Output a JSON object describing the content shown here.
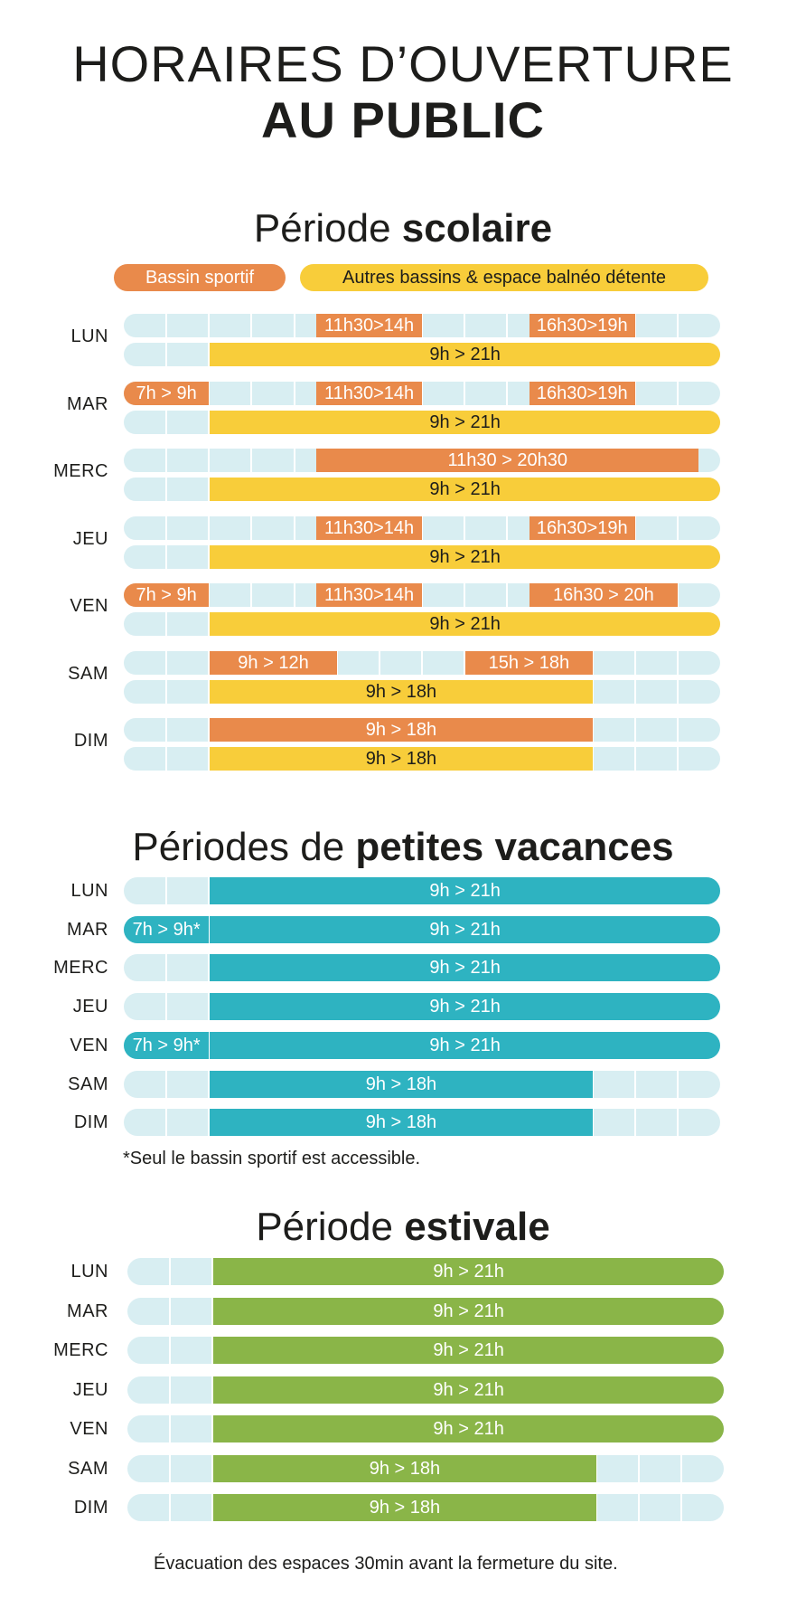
{
  "title": {
    "line1": "HORAIRES D’OUVERTURE",
    "line2": "AU PUBLIC"
  },
  "colors": {
    "track": "#d8eef2",
    "bassin_sportif": "#e98a4b",
    "autres_bassins": "#f8cd3a",
    "petites_vacances": "#2eb3c1",
    "estivale": "#8ab548"
  },
  "scolaire": {
    "title_normal": "Période ",
    "title_bold": "scolaire",
    "legend": {
      "bassin_sportif": "Bassin sportif",
      "autres_bassins": "Autres bassins & espace balnéo détente"
    },
    "days": [
      {
        "label": "LUN",
        "orange": [
          {
            "text": "11h30>14h",
            "start": 11.5,
            "end": 14
          },
          {
            "text": "16h30>19h",
            "start": 16.5,
            "end": 19
          }
        ],
        "yellow": [
          {
            "text": "9h > 21h",
            "start": 9,
            "end": 21
          }
        ]
      },
      {
        "label": "MAR",
        "orange": [
          {
            "text": "7h > 9h",
            "start": 7,
            "end": 9
          },
          {
            "text": "11h30>14h",
            "start": 11.5,
            "end": 14
          },
          {
            "text": "16h30>19h",
            "start": 16.5,
            "end": 19
          }
        ],
        "yellow": [
          {
            "text": "9h > 21h",
            "start": 9,
            "end": 21
          }
        ]
      },
      {
        "label": "MERC",
        "orange": [
          {
            "text": "11h30 > 20h30",
            "start": 11.5,
            "end": 20.5
          }
        ],
        "yellow": [
          {
            "text": "9h > 21h",
            "start": 9,
            "end": 21
          }
        ]
      },
      {
        "label": "JEU",
        "orange": [
          {
            "text": "11h30>14h",
            "start": 11.5,
            "end": 14
          },
          {
            "text": "16h30>19h",
            "start": 16.5,
            "end": 19
          }
        ],
        "yellow": [
          {
            "text": "9h > 21h",
            "start": 9,
            "end": 21
          }
        ]
      },
      {
        "label": "VEN",
        "orange": [
          {
            "text": "7h > 9h",
            "start": 7,
            "end": 9
          },
          {
            "text": "11h30>14h",
            "start": 11.5,
            "end": 14
          },
          {
            "text": "16h30 > 20h",
            "start": 16.5,
            "end": 20
          }
        ],
        "yellow": [
          {
            "text": "9h > 21h",
            "start": 9,
            "end": 21
          }
        ]
      },
      {
        "label": "SAM",
        "orange": [
          {
            "text": "9h > 12h",
            "start": 9,
            "end": 12
          },
          {
            "text": "15h > 18h",
            "start": 15,
            "end": 18
          }
        ],
        "yellow": [
          {
            "text": "9h > 18h",
            "start": 9,
            "end": 18
          }
        ]
      },
      {
        "label": "DIM",
        "orange": [
          {
            "text": "9h > 18h",
            "start": 9,
            "end": 18
          }
        ],
        "yellow": [
          {
            "text": "9h > 18h",
            "start": 9,
            "end": 18
          }
        ]
      }
    ]
  },
  "petites_vacances": {
    "title_normal": "Périodes de ",
    "title_bold": "petites vacances",
    "days": [
      {
        "label": "LUN",
        "bars": [
          {
            "text": "9h > 21h",
            "start": 9,
            "end": 21
          }
        ]
      },
      {
        "label": "MAR",
        "bars": [
          {
            "text": "7h > 9h*",
            "start": 7,
            "end": 9
          },
          {
            "text": "9h > 21h",
            "start": 9,
            "end": 21
          }
        ]
      },
      {
        "label": "MERC",
        "bars": [
          {
            "text": "9h > 21h",
            "start": 9,
            "end": 21
          }
        ]
      },
      {
        "label": "JEU",
        "bars": [
          {
            "text": "9h > 21h",
            "start": 9,
            "end": 21
          }
        ]
      },
      {
        "label": "VEN",
        "bars": [
          {
            "text": "7h > 9h*",
            "start": 7,
            "end": 9
          },
          {
            "text": "9h > 21h",
            "start": 9,
            "end": 21
          }
        ]
      },
      {
        "label": "SAM",
        "bars": [
          {
            "text": "9h > 18h",
            "start": 9,
            "end": 18
          }
        ]
      },
      {
        "label": "DIM",
        "bars": [
          {
            "text": "9h > 18h",
            "start": 9,
            "end": 18
          }
        ]
      }
    ],
    "note": "*Seul le bassin sportif est accessible."
  },
  "estivale": {
    "title_normal": "Période ",
    "title_bold": "estivale",
    "days": [
      {
        "label": "LUN",
        "bars": [
          {
            "text": "9h > 21h",
            "start": 9,
            "end": 21
          }
        ]
      },
      {
        "label": "MAR",
        "bars": [
          {
            "text": "9h > 21h",
            "start": 9,
            "end": 21
          }
        ]
      },
      {
        "label": "MERC",
        "bars": [
          {
            "text": "9h > 21h",
            "start": 9,
            "end": 21
          }
        ]
      },
      {
        "label": "JEU",
        "bars": [
          {
            "text": "9h > 21h",
            "start": 9,
            "end": 21
          }
        ]
      },
      {
        "label": "VEN",
        "bars": [
          {
            "text": "9h > 21h",
            "start": 9,
            "end": 21
          }
        ]
      },
      {
        "label": "SAM",
        "bars": [
          {
            "text": "9h > 18h",
            "start": 9,
            "end": 18
          }
        ]
      },
      {
        "label": "DIM",
        "bars": [
          {
            "text": "9h > 18h",
            "start": 9,
            "end": 18
          }
        ]
      }
    ],
    "note": "Évacuation des espaces 30min avant la fermeture du site."
  }
}
